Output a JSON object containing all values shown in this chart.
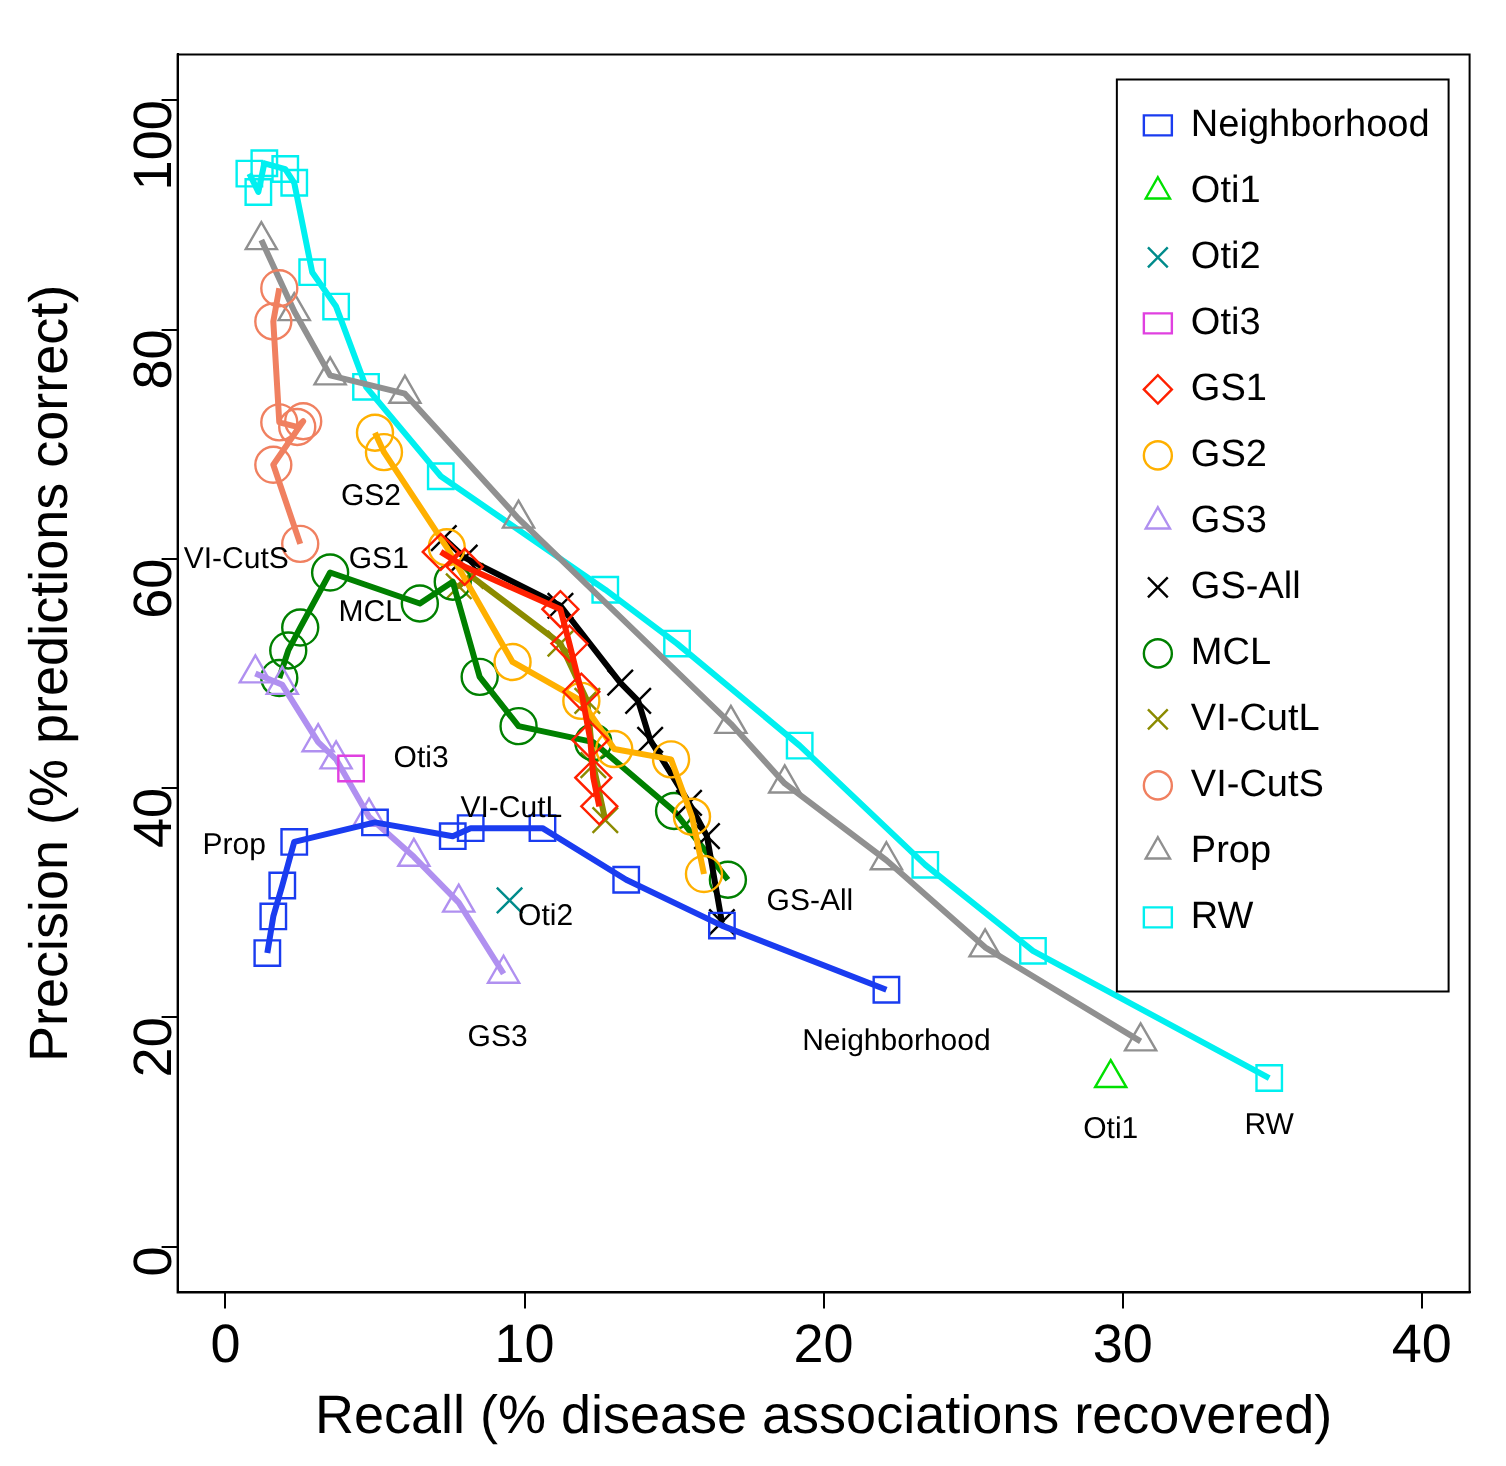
{
  "chart_data": {
    "type": "line",
    "xlabel": "Recall (% disease associations recovered)",
    "ylabel": "Precision (% predictions correct)",
    "xlim": [
      -1.6,
      41.6
    ],
    "ylim": [
      -4,
      104
    ],
    "xticks": [
      0,
      10,
      20,
      30,
      40
    ],
    "yticks": [
      0,
      20,
      40,
      60,
      80,
      100
    ],
    "grid": false,
    "legend": "top right",
    "series": [
      {
        "name": "Neighborhood",
        "color": "#1a3cf0",
        "marker": "square",
        "x": [
          1.4,
          1.6,
          1.9,
          2.3,
          5.0,
          7.6,
          8.2,
          10.6,
          13.4,
          16.6,
          22.1
        ],
        "values": [
          25.6,
          28.8,
          31.5,
          35.3,
          37,
          35.8,
          36.5,
          36.5,
          32,
          28,
          22.4
        ]
      },
      {
        "name": "Oti1",
        "type": "scatter",
        "color": "#00e000",
        "marker": "triangle",
        "x": [
          29.6
        ],
        "values": [
          14.7
        ]
      },
      {
        "name": "Oti2",
        "type": "scatter",
        "color": "#008b8b",
        "marker": "cross",
        "x": [
          9.5
        ],
        "values": [
          30.2
        ]
      },
      {
        "name": "Oti3",
        "type": "scatter",
        "color": "#e040e0",
        "marker": "square",
        "x": [
          4.2
        ],
        "values": [
          41.7
        ]
      },
      {
        "name": "GS1",
        "color": "#ff2000",
        "marker": "diamond",
        "x": [
          7.2,
          8.0,
          11.2,
          11.5,
          11.9,
          12.2,
          12.3,
          12.5
        ],
        "values": [
          60.6,
          59.3,
          55.6,
          52.6,
          48.4,
          44.2,
          40.9,
          38.4
        ]
      },
      {
        "name": "GS2",
        "color": "#ffb000",
        "marker": "circle",
        "x": [
          5.0,
          5.3,
          7.4,
          9.6,
          11.9,
          13.0,
          14.9,
          15.6,
          16.0
        ],
        "values": [
          71,
          69.3,
          61,
          51,
          47.6,
          43.4,
          42.5,
          37.5,
          32.5
        ]
      },
      {
        "name": "GS3",
        "color": "#b090f0",
        "marker": "triangle",
        "x": [
          1.0,
          1.9,
          3.1,
          3.7,
          4.8,
          6.3,
          7.8,
          9.3
        ],
        "values": [
          50,
          49,
          44,
          42.5,
          37.5,
          34,
          30,
          23.8
        ]
      },
      {
        "name": "GS-All",
        "color": "#000000",
        "marker": "cross",
        "x": [
          7.3,
          8.0,
          11.2,
          13.2,
          13.8,
          14.2,
          15.5,
          16.1,
          16.6
        ],
        "values": [
          61.8,
          60.1,
          55.9,
          49.2,
          47.6,
          44.2,
          38.7,
          35.8,
          28.3
        ]
      },
      {
        "name": "MCL",
        "color": "#008000",
        "marker": "circle",
        "x": [
          1.8,
          2.1,
          2.5,
          3.5,
          6.5,
          7.6,
          8.5,
          9.8,
          12.3,
          15,
          16.8
        ],
        "values": [
          49.6,
          52,
          54,
          58.8,
          56.1,
          58,
          49.7,
          45.4,
          44,
          38,
          32
        ]
      },
      {
        "name": "VI-CutL",
        "color": "#8b8b00",
        "marker": "cross",
        "x": [
          7.8,
          8.2,
          11.2,
          12.1,
          12.3,
          12.7
        ],
        "values": [
          57.6,
          58.5,
          52.6,
          47.6,
          42,
          37.2
        ]
      },
      {
        "name": "VI-CutS",
        "color": "#f08060",
        "marker": "circle",
        "x": [
          1.8,
          1.6,
          1.8,
          2.4,
          2.6,
          1.6,
          2.5
        ],
        "values": [
          83.6,
          80.7,
          71.9,
          71.5,
          72,
          68.2,
          61.3
        ]
      },
      {
        "name": "Prop",
        "color": "#909090",
        "marker": "triangle",
        "x": [
          1.2,
          2.3,
          3.5,
          6.0,
          9.8,
          16.9,
          18.7,
          22.1,
          25.4,
          30.6
        ],
        "values": [
          87.8,
          81.6,
          76,
          74.4,
          63.5,
          45.6,
          40.4,
          33.7,
          26.1,
          17.9
        ]
      },
      {
        "name": "RW",
        "color": "#00f0f0",
        "marker": "square",
        "x": [
          0.8,
          1.1,
          1.3,
          2.0,
          2.3,
          2.9,
          3.7,
          4.7,
          7.2,
          12.7,
          15.1,
          19.2,
          23.4,
          27,
          34.9
        ],
        "values": [
          93.6,
          92,
          94.5,
          94,
          92.8,
          85,
          82,
          75,
          67.2,
          57.3,
          52.6,
          43.7,
          33.3,
          25.8,
          14.7
        ]
      }
    ],
    "annotations": [
      {
        "text": "Neighborhood",
        "x": 22.1,
        "y": 22.4
      },
      {
        "text": "Oti1",
        "x": 29.6,
        "y": 14.7
      },
      {
        "text": "Oti2",
        "x": 9.5,
        "y": 30.2
      },
      {
        "text": "Oti3",
        "x": 4.2,
        "y": 41.7
      },
      {
        "text": "GS1",
        "x": 7.2,
        "y": 60.6
      },
      {
        "text": "GS2",
        "x": 5.0,
        "y": 71
      },
      {
        "text": "GS3",
        "x": 9.3,
        "y": 23.8
      },
      {
        "text": "GS-All",
        "x": 16.6,
        "y": 28.3
      },
      {
        "text": "MCL",
        "x": 3.5,
        "y": 58.8
      },
      {
        "text": "VI-CutL",
        "x": 12.3,
        "y": 42
      },
      {
        "text": "VI-CutS",
        "x": 2.5,
        "y": 61.3
      },
      {
        "text": "Prop",
        "x": 2.3,
        "y": 35.3
      },
      {
        "text": "RW",
        "x": 34.9,
        "y": 14.7
      }
    ]
  }
}
